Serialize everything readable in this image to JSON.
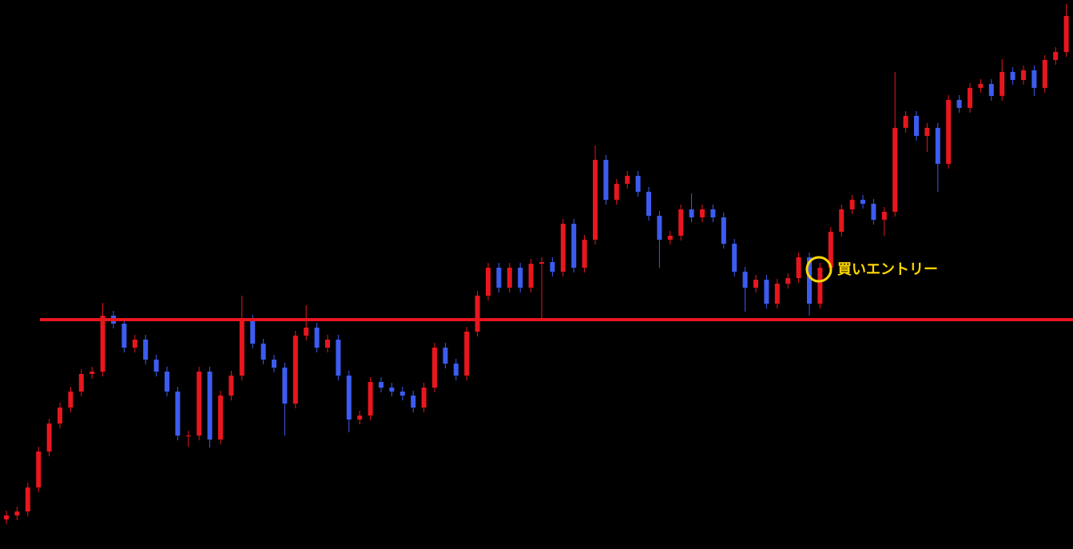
{
  "chart_data": {
    "type": "candlestick",
    "ylim": [
      0,
      687
    ],
    "up_color": "#e8161e",
    "down_color": "#3c5cf0",
    "level_color": "#e8161e",
    "level": 287,
    "annotation": "買いエントリー",
    "open": [
      37,
      42,
      47,
      77,
      122,
      157,
      177,
      197,
      219,
      222,
      292,
      282,
      252,
      262,
      237,
      222,
      197,
      142,
      142,
      222,
      137,
      192,
      217,
      287,
      257,
      237,
      227,
      182,
      267,
      277,
      252,
      262,
      217,
      162,
      167,
      209,
      202,
      197,
      192,
      177,
      202,
      252,
      232,
      217,
      272,
      317,
      352,
      327,
      352,
      327,
      357,
      359,
      347,
      407,
      352,
      387,
      487,
      437,
      457,
      467,
      447,
      417,
      387,
      392,
      425,
      415,
      425,
      415,
      382,
      347,
      327,
      337,
      307,
      332,
      339,
      365,
      307,
      352,
      397,
      425,
      437,
      432,
      412,
      422,
      527,
      542,
      517,
      527,
      482,
      562,
      552,
      577,
      582,
      567,
      597,
      587,
      599,
      577,
      612,
      622
    ],
    "high": [
      48,
      53,
      83,
      128,
      163,
      183,
      203,
      225,
      228,
      308,
      298,
      288,
      268,
      268,
      243,
      228,
      203,
      148,
      228,
      228,
      198,
      223,
      317,
      293,
      263,
      243,
      233,
      273,
      305,
      283,
      268,
      268,
      223,
      173,
      215,
      215,
      208,
      203,
      198,
      208,
      258,
      258,
      238,
      278,
      323,
      358,
      358,
      358,
      358,
      363,
      365,
      365,
      413,
      413,
      393,
      505,
      493,
      463,
      473,
      473,
      453,
      423,
      398,
      431,
      445,
      431,
      431,
      421,
      388,
      353,
      343,
      343,
      338,
      345,
      371,
      371,
      358,
      403,
      431,
      443,
      443,
      438,
      428,
      597,
      548,
      548,
      533,
      533,
      568,
      568,
      583,
      588,
      588,
      613,
      603,
      605,
      605,
      618,
      628,
      682
    ],
    "low": [
      31,
      36,
      41,
      71,
      116,
      151,
      171,
      191,
      213,
      216,
      276,
      246,
      246,
      231,
      216,
      191,
      136,
      128,
      136,
      127,
      131,
      186,
      211,
      251,
      231,
      221,
      142,
      176,
      261,
      246,
      246,
      211,
      146,
      156,
      161,
      196,
      191,
      186,
      171,
      171,
      196,
      226,
      211,
      211,
      266,
      311,
      321,
      321,
      321,
      321,
      287,
      341,
      341,
      346,
      346,
      381,
      431,
      431,
      451,
      441,
      411,
      352,
      381,
      386,
      409,
      409,
      409,
      376,
      341,
      297,
      321,
      301,
      301,
      326,
      333,
      292,
      301,
      346,
      391,
      419,
      426,
      406,
      392,
      416,
      521,
      511,
      497,
      447,
      476,
      546,
      546,
      571,
      561,
      561,
      581,
      581,
      567,
      571,
      606,
      616
    ],
    "close": [
      42,
      47,
      77,
      122,
      157,
      177,
      197,
      219,
      222,
      292,
      282,
      252,
      262,
      237,
      222,
      197,
      142,
      142,
      222,
      137,
      192,
      217,
      287,
      257,
      237,
      227,
      182,
      267,
      277,
      252,
      262,
      217,
      162,
      167,
      209,
      202,
      197,
      192,
      177,
      202,
      252,
      232,
      217,
      272,
      317,
      352,
      327,
      352,
      327,
      357,
      359,
      347,
      407,
      352,
      387,
      487,
      437,
      457,
      467,
      447,
      417,
      387,
      392,
      425,
      415,
      425,
      415,
      382,
      347,
      327,
      337,
      307,
      332,
      339,
      365,
      307,
      352,
      397,
      425,
      437,
      432,
      412,
      422,
      527,
      542,
      517,
      527,
      482,
      562,
      552,
      577,
      582,
      567,
      597,
      587,
      599,
      577,
      612,
      622,
      667
    ]
  }
}
